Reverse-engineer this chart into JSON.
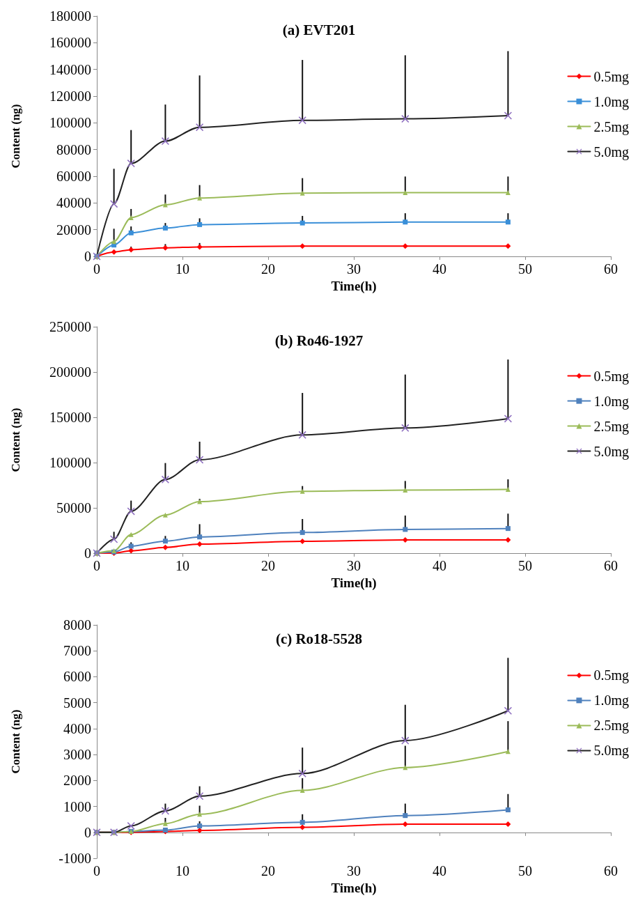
{
  "chart_data": [
    {
      "type": "line",
      "title": "(a) EVT201",
      "xlabel": "Time(h)",
      "ylabel": "Content (ng)",
      "x": [
        0,
        2,
        4,
        8,
        12,
        24,
        36,
        48
      ],
      "xlim": [
        0,
        60
      ],
      "xticks": [
        0,
        10,
        20,
        30,
        40,
        50,
        60
      ],
      "ylim": [
        0,
        180000
      ],
      "yticks": [
        0,
        20000,
        40000,
        60000,
        80000,
        100000,
        120000,
        140000,
        160000,
        180000
      ],
      "grid": false,
      "legend": "right",
      "series": [
        {
          "name": "0.5mg",
          "color": "#ff0000",
          "marker": "diamond",
          "values": [
            0,
            3300,
            5000,
            6400,
            7100,
            7700,
            7700,
            7700
          ],
          "errors": [
            null,
            null,
            [
              5000,
              7300
            ],
            [
              6400,
              9200
            ],
            [
              7100,
              10000
            ],
            null,
            null,
            null
          ]
        },
        {
          "name": "1.0mg",
          "color": "#3a8fd8",
          "marker": "square",
          "values": [
            0,
            8500,
            17600,
            21200,
            23800,
            25000,
            25700,
            25700
          ],
          "errors": [
            null,
            [
              8500,
              20700
            ],
            [
              17600,
              22400
            ],
            [
              21200,
              25000
            ],
            [
              23800,
              28500
            ],
            [
              25000,
              30300
            ],
            [
              25700,
              32300
            ],
            [
              25700,
              32300
            ]
          ]
        },
        {
          "name": "2.5mg",
          "color": "#9bbb59",
          "marker": "triangle",
          "values": [
            0,
            11100,
            29000,
            38600,
            43700,
            47300,
            47800,
            47800
          ],
          "errors": [
            null,
            null,
            [
              29000,
              35500
            ],
            [
              38600,
              46300
            ],
            [
              43700,
              53400
            ],
            [
              47300,
              58600
            ],
            [
              47800,
              59800
            ],
            [
              47800,
              59800
            ]
          ]
        },
        {
          "name": "5.0mg",
          "color": "#222222",
          "marker": "cross",
          "values": [
            0,
            39300,
            69600,
            86300,
            96700,
            101900,
            103000,
            105400
          ],
          "errors": [
            null,
            [
              39300,
              65600
            ],
            [
              69600,
              94600
            ],
            [
              86300,
              113700
            ],
            [
              96700,
              135500
            ],
            [
              101900,
              147100
            ],
            [
              103000,
              150600
            ],
            [
              105400,
              153700
            ]
          ]
        }
      ]
    },
    {
      "type": "line",
      "title": "(b) Ro46-1927",
      "xlabel": "Time(h)",
      "ylabel": "Content (ng)",
      "x": [
        0,
        2,
        4,
        8,
        12,
        24,
        36,
        48
      ],
      "xlim": [
        0,
        60
      ],
      "xticks": [
        0,
        10,
        20,
        30,
        40,
        50,
        60
      ],
      "ylim": [
        0,
        250000
      ],
      "yticks": [
        0,
        50000,
        100000,
        150000,
        200000,
        250000
      ],
      "grid": false,
      "legend": "right",
      "series": [
        {
          "name": "0.5mg",
          "color": "#ff0000",
          "marker": "diamond",
          "values": [
            0,
            0,
            2600,
            6400,
            10000,
            13100,
            14600,
            14600
          ]
        },
        {
          "name": "1.0mg",
          "color": "#4f81bd",
          "marker": "square",
          "values": [
            0,
            1300,
            7700,
            13300,
            17900,
            22800,
            26200,
            27200
          ],
          "errors": [
            null,
            null,
            [
              7700,
              12000
            ],
            [
              13300,
              19000
            ],
            [
              17900,
              32000
            ],
            [
              22800,
              37700
            ],
            [
              26200,
              41500
            ],
            [
              27200,
              43600
            ]
          ]
        },
        {
          "name": "2.5mg",
          "color": "#9bbb59",
          "marker": "triangle",
          "values": [
            0,
            2600,
            20500,
            42100,
            56900,
            68200,
            69700,
            70300
          ],
          "errors": [
            null,
            null,
            null,
            null,
            [
              56900,
              60000
            ],
            [
              68200,
              74100
            ],
            [
              69700,
              79700
            ],
            [
              70300,
              81500
            ]
          ]
        },
        {
          "name": "5.0mg",
          "color": "#222222",
          "marker": "cross",
          "values": [
            0,
            15400,
            46200,
            81300,
            103100,
            130500,
            138200,
            148500
          ],
          "errors": [
            null,
            [
              15400,
              23600
            ],
            [
              46200,
              58000
            ],
            [
              81300,
              99500
            ],
            [
              103100,
              123100
            ],
            [
              130500,
              176900
            ],
            [
              138200,
              197200
            ],
            [
              148500,
              213800
            ]
          ]
        }
      ]
    },
    {
      "type": "line",
      "title": "(c) Ro18-5528",
      "xlabel": "Time(h)",
      "ylabel": "Content (ng)",
      "x": [
        0,
        2,
        4,
        8,
        12,
        24,
        36,
        48
      ],
      "xlim": [
        0,
        60
      ],
      "xticks": [
        0,
        10,
        20,
        30,
        40,
        50,
        60
      ],
      "ylim": [
        -1000,
        8000
      ],
      "yticks": [
        -1000,
        0,
        1000,
        2000,
        3000,
        4000,
        5000,
        6000,
        7000,
        8000
      ],
      "grid": false,
      "legend": "right",
      "series": [
        {
          "name": "0.5mg",
          "color": "#ff0000",
          "marker": "diamond",
          "values": [
            0,
            0,
            0,
            40,
            80,
            200,
            320,
            320
          ]
        },
        {
          "name": "1.0mg",
          "color": "#4f81bd",
          "marker": "square",
          "values": [
            0,
            0,
            40,
            90,
            250,
            390,
            650,
            870
          ],
          "errors": [
            null,
            null,
            null,
            null,
            [
              250,
              430
            ],
            [
              390,
              700
            ],
            [
              650,
              1110
            ],
            [
              870,
              1480
            ]
          ]
        },
        {
          "name": "2.5mg",
          "color": "#9bbb59",
          "marker": "triangle",
          "values": [
            0,
            0,
            40,
            340,
            700,
            1620,
            2500,
            3120
          ],
          "errors": [
            null,
            null,
            null,
            [
              340,
              560
            ],
            [
              700,
              1030
            ],
            [
              1620,
              2090
            ],
            [
              2500,
              3340
            ],
            [
              3120,
              4290
            ]
          ]
        },
        {
          "name": "5.0mg",
          "color": "#222222",
          "marker": "cross",
          "values": [
            0,
            0,
            250,
            830,
            1400,
            2270,
            3540,
            4690
          ],
          "errors": [
            null,
            null,
            null,
            [
              830,
              1110
            ],
            [
              1400,
              1780
            ],
            [
              2270,
              3270
            ],
            [
              3540,
              4920
            ],
            [
              4690,
              6730
            ]
          ]
        }
      ]
    }
  ]
}
